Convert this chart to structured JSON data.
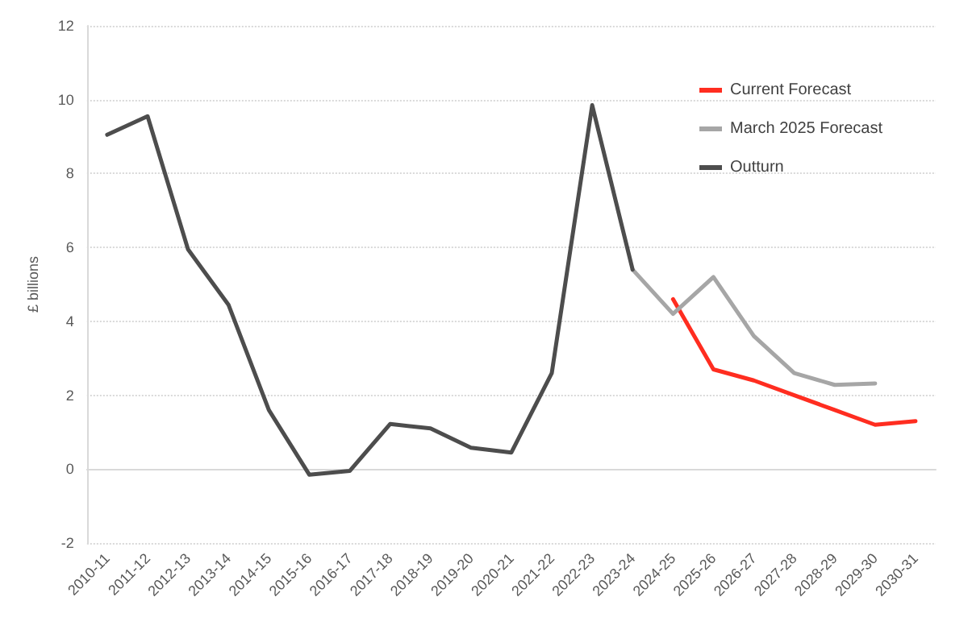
{
  "chart_data": {
    "type": "line",
    "ylabel": "£ billions",
    "categories": [
      "2010-11",
      "2011-12",
      "2012-13",
      "2013-14",
      "2014-15",
      "2015-16",
      "2016-17",
      "2017-18",
      "2018-19",
      "2019-20",
      "2020-21",
      "2021-22",
      "2022-23",
      "2023-24",
      "2024-25",
      "2025-26",
      "2026-27",
      "2027-28",
      "2028-29",
      "2029-30",
      "2030-31"
    ],
    "series": [
      {
        "name": "Current Forecast",
        "color": "#ff2d20",
        "values": [
          null,
          null,
          null,
          null,
          null,
          null,
          null,
          null,
          null,
          null,
          null,
          null,
          null,
          null,
          4.6,
          2.7,
          2.4,
          2.0,
          1.6,
          1.2,
          1.3
        ]
      },
      {
        "name": "March 2025 Forecast",
        "color": "#a6a6a6",
        "values": [
          null,
          null,
          null,
          null,
          null,
          null,
          null,
          null,
          null,
          null,
          null,
          null,
          null,
          5.4,
          4.2,
          5.2,
          3.6,
          2.6,
          2.28,
          2.32,
          null
        ]
      },
      {
        "name": "Outturn",
        "color": "#4d4d4d",
        "values": [
          9.05,
          9.55,
          5.95,
          4.45,
          1.6,
          -0.15,
          -0.05,
          1.22,
          1.1,
          0.58,
          0.45,
          2.6,
          9.85,
          5.4,
          null,
          null,
          null,
          null,
          null,
          null,
          null
        ]
      }
    ],
    "ylim": [
      -2,
      12
    ],
    "yticks": [
      -2,
      0,
      2,
      4,
      6,
      8,
      10,
      12
    ],
    "grid": "y",
    "legend": "top right",
    "marker": "none",
    "line_style": "solid"
  }
}
